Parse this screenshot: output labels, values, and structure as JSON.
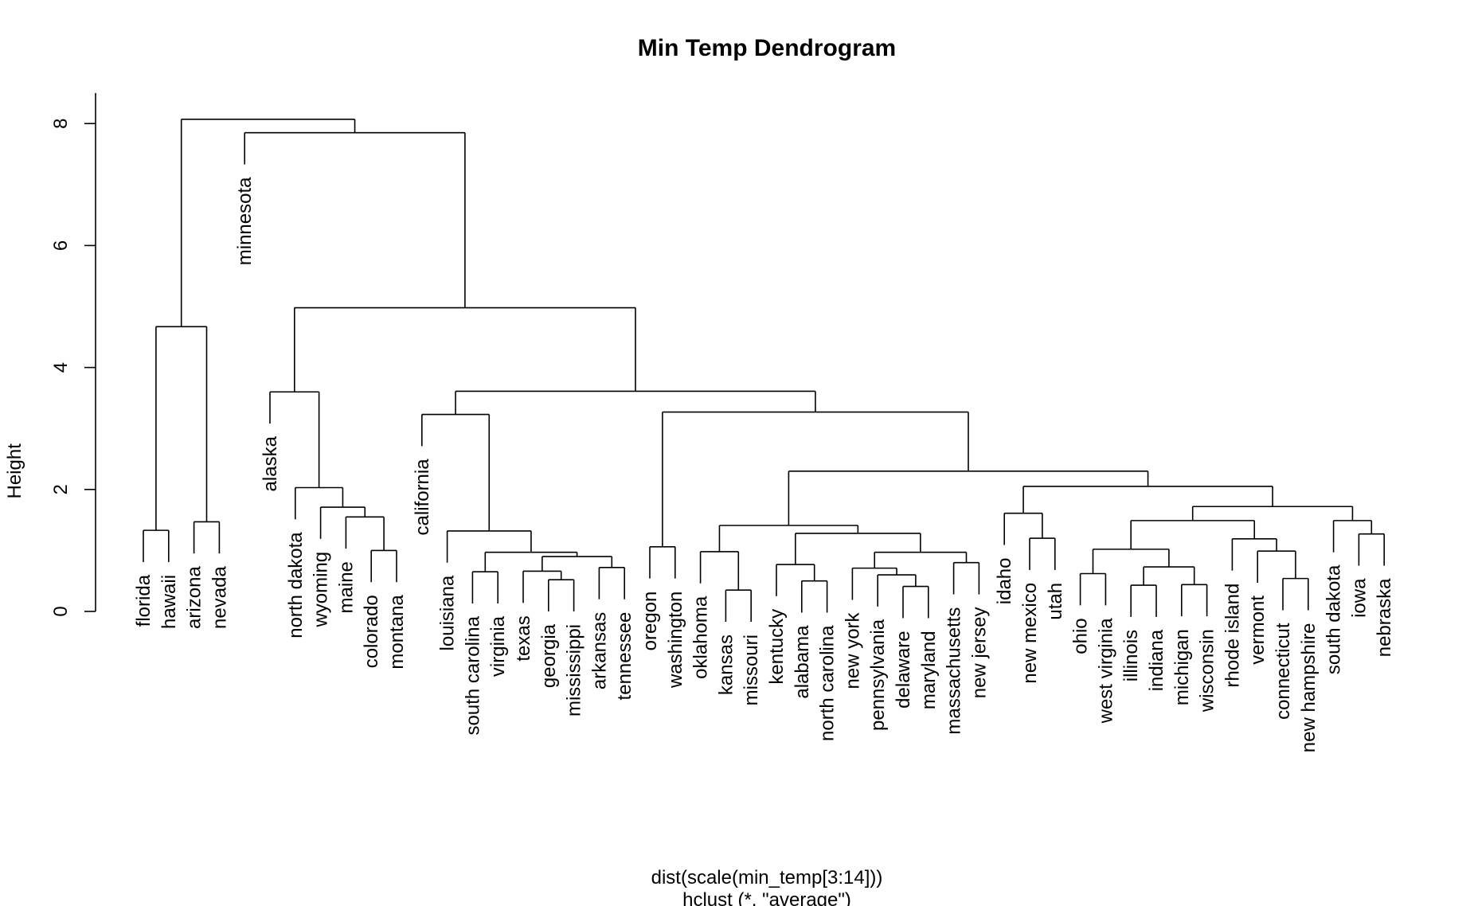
{
  "chart_data": {
    "type": "dendrogram",
    "title": "Min Temp Dendrogram",
    "ylabel": "Height",
    "xlabel": "dist(scale(min_temp[3:14]))",
    "sublabel": "hclust (*, \"average\")",
    "ylim": [
      0,
      8.5
    ],
    "yticks": [
      "0",
      "2",
      "4",
      "6",
      "8"
    ],
    "leaf_order": [
      "florida",
      "hawaii",
      "arizona",
      "nevada",
      "minnesota",
      "alaska",
      "north dakota",
      "wyoming",
      "maine",
      "colorado",
      "montana",
      "california",
      "louisiana",
      "south carolina",
      "virginia",
      "texas",
      "georgia",
      "mississippi",
      "arkansas",
      "tennessee",
      "oregon",
      "washington",
      "oklahoma",
      "kansas",
      "missouri",
      "kentucky",
      "alabama",
      "north carolina",
      "new york",
      "pennsylvania",
      "delaware",
      "maryland",
      "massachusetts",
      "new jersey",
      "idaho",
      "new mexico",
      "utah",
      "ohio",
      "west virginia",
      "illinois",
      "indiana",
      "michigan",
      "wisconsin",
      "rhode island",
      "vermont",
      "connecticut",
      "new hampshire",
      "south dakota",
      "iowa",
      "nebraska"
    ],
    "tree": {
      "h": 8.07,
      "c": [
        {
          "h": 4.67,
          "c": [
            {
              "h": 1.33,
              "c": [
                "florida",
                "hawaii"
              ]
            },
            {
              "h": 1.47,
              "c": [
                "arizona",
                "nevada"
              ]
            }
          ]
        },
        {
          "h": 7.85,
          "c": [
            "minnesota",
            {
              "h": 4.98,
              "c": [
                {
                  "h": 3.6,
                  "c": [
                    "alaska",
                    {
                      "h": 2.03,
                      "c": [
                        "north dakota",
                        {
                          "h": 1.71,
                          "c": [
                            "wyoming",
                            {
                              "h": 1.55,
                              "c": [
                                "maine",
                                {
                                  "h": 1.0,
                                  "c": [
                                    "colorado",
                                    "montana"
                                  ]
                                }
                              ]
                            }
                          ]
                        }
                      ]
                    }
                  ]
                },
                {
                  "h": 3.61,
                  "c": [
                    {
                      "h": 3.23,
                      "c": [
                        "california",
                        {
                          "h": 1.32,
                          "c": [
                            "louisiana",
                            {
                              "h": 0.97,
                              "c": [
                                {
                                  "h": 0.65,
                                  "c": [
                                    "south carolina",
                                    "virginia"
                                  ]
                                },
                                {
                                  "h": 0.9,
                                  "c": [
                                    {
                                      "h": 0.66,
                                      "c": [
                                        "texas",
                                        {
                                          "h": 0.52,
                                          "c": [
                                            "georgia",
                                            "mississippi"
                                          ]
                                        }
                                      ]
                                    },
                                    {
                                      "h": 0.72,
                                      "c": [
                                        "arkansas",
                                        "tennessee"
                                      ]
                                    }
                                  ]
                                }
                              ]
                            }
                          ]
                        }
                      ]
                    },
                    {
                      "h": 3.27,
                      "c": [
                        {
                          "h": 1.06,
                          "c": [
                            "oregon",
                            "washington"
                          ]
                        },
                        {
                          "h": 2.3,
                          "c": [
                            {
                              "h": 1.41,
                              "c": [
                                {
                                  "h": 0.98,
                                  "c": [
                                    "oklahoma",
                                    {
                                      "h": 0.35,
                                      "c": [
                                        "kansas",
                                        "missouri"
                                      ]
                                    }
                                  ]
                                },
                                {
                                  "h": 1.28,
                                  "c": [
                                    {
                                      "h": 0.77,
                                      "c": [
                                        "kentucky",
                                        {
                                          "h": 0.5,
                                          "c": [
                                            "alabama",
                                            "north carolina"
                                          ]
                                        }
                                      ]
                                    },
                                    {
                                      "h": 0.97,
                                      "c": [
                                        {
                                          "h": 0.71,
                                          "c": [
                                            "new york",
                                            {
                                              "h": 0.6,
                                              "c": [
                                                "pennsylvania",
                                                {
                                                  "h": 0.41,
                                                  "c": [
                                                    "delaware",
                                                    "maryland"
                                                  ]
                                                }
                                              ]
                                            }
                                          ]
                                        },
                                        {
                                          "h": 0.8,
                                          "c": [
                                            "massachusetts",
                                            "new jersey"
                                          ]
                                        }
                                      ]
                                    }
                                  ]
                                }
                              ]
                            },
                            {
                              "h": 2.05,
                              "c": [
                                {
                                  "h": 1.61,
                                  "c": [
                                    "idaho",
                                    {
                                      "h": 1.2,
                                      "c": [
                                        "new mexico",
                                        "utah"
                                      ]
                                    }
                                  ]
                                },
                                {
                                  "h": 1.72,
                                  "c": [
                                    {
                                      "h": 1.49,
                                      "c": [
                                        {
                                          "h": 1.02,
                                          "c": [
                                            {
                                              "h": 0.62,
                                              "c": [
                                                "ohio",
                                                "west virginia"
                                              ]
                                            },
                                            {
                                              "h": 0.73,
                                              "c": [
                                                {
                                                  "h": 0.43,
                                                  "c": [
                                                    "illinois",
                                                    "indiana"
                                                  ]
                                                },
                                                {
                                                  "h": 0.44,
                                                  "c": [
                                                    "michigan",
                                                    "wisconsin"
                                                  ]
                                                }
                                              ]
                                            }
                                          ]
                                        },
                                        {
                                          "h": 1.19,
                                          "c": [
                                            "rhode island",
                                            {
                                              "h": 0.99,
                                              "c": [
                                                "vermont",
                                                {
                                                  "h": 0.54,
                                                  "c": [
                                                    "connecticut",
                                                    "new hampshire"
                                                  ]
                                                }
                                              ]
                                            }
                                          ]
                                        }
                                      ]
                                    },
                                    {
                                      "h": 1.49,
                                      "c": [
                                        "south dakota",
                                        {
                                          "h": 1.27,
                                          "c": [
                                            "iowa",
                                            "nebraska"
                                          ]
                                        }
                                      ]
                                    }
                                  ]
                                }
                              ]
                            }
                          ]
                        }
                      ]
                    }
                  ]
                }
              ]
            }
          ]
        }
      ]
    }
  }
}
